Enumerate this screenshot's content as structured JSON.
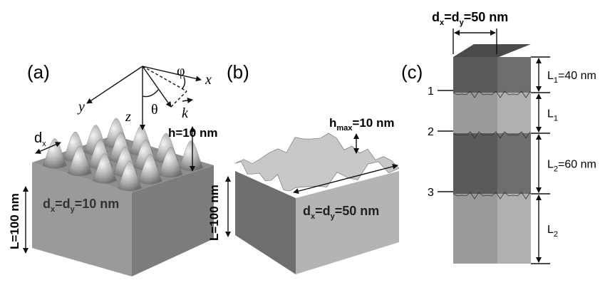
{
  "panel_a": {
    "label": "(a)",
    "axes": {
      "x": "x",
      "y": "y",
      "z": "z",
      "phi": "φ",
      "theta": "θ",
      "k": "k"
    },
    "dx_label": [
      "d",
      "x"
    ],
    "height_label": "h=10 nm",
    "thickness_label": "L=100 nm",
    "period_label": [
      "d",
      "x",
      "=d",
      "y",
      "=10 nm"
    ]
  },
  "panel_b": {
    "label": "(b)",
    "height_label": [
      "h",
      "max",
      "=10 nm"
    ],
    "thickness_label": "L=100 nm",
    "period_label": [
      "d",
      "x",
      "=d",
      "y",
      "=50 nm"
    ]
  },
  "panel_c": {
    "label": "(c)",
    "period_label": [
      "d",
      "x",
      "=d",
      "y",
      "=50 nm"
    ],
    "interfaces": [
      "1",
      "2",
      "3"
    ],
    "layers": [
      [
        "L",
        "1",
        "=40 nm"
      ],
      [
        "L",
        "1"
      ],
      [
        "L",
        "2",
        "=60 nm"
      ],
      [
        "L",
        "2"
      ]
    ]
  }
}
